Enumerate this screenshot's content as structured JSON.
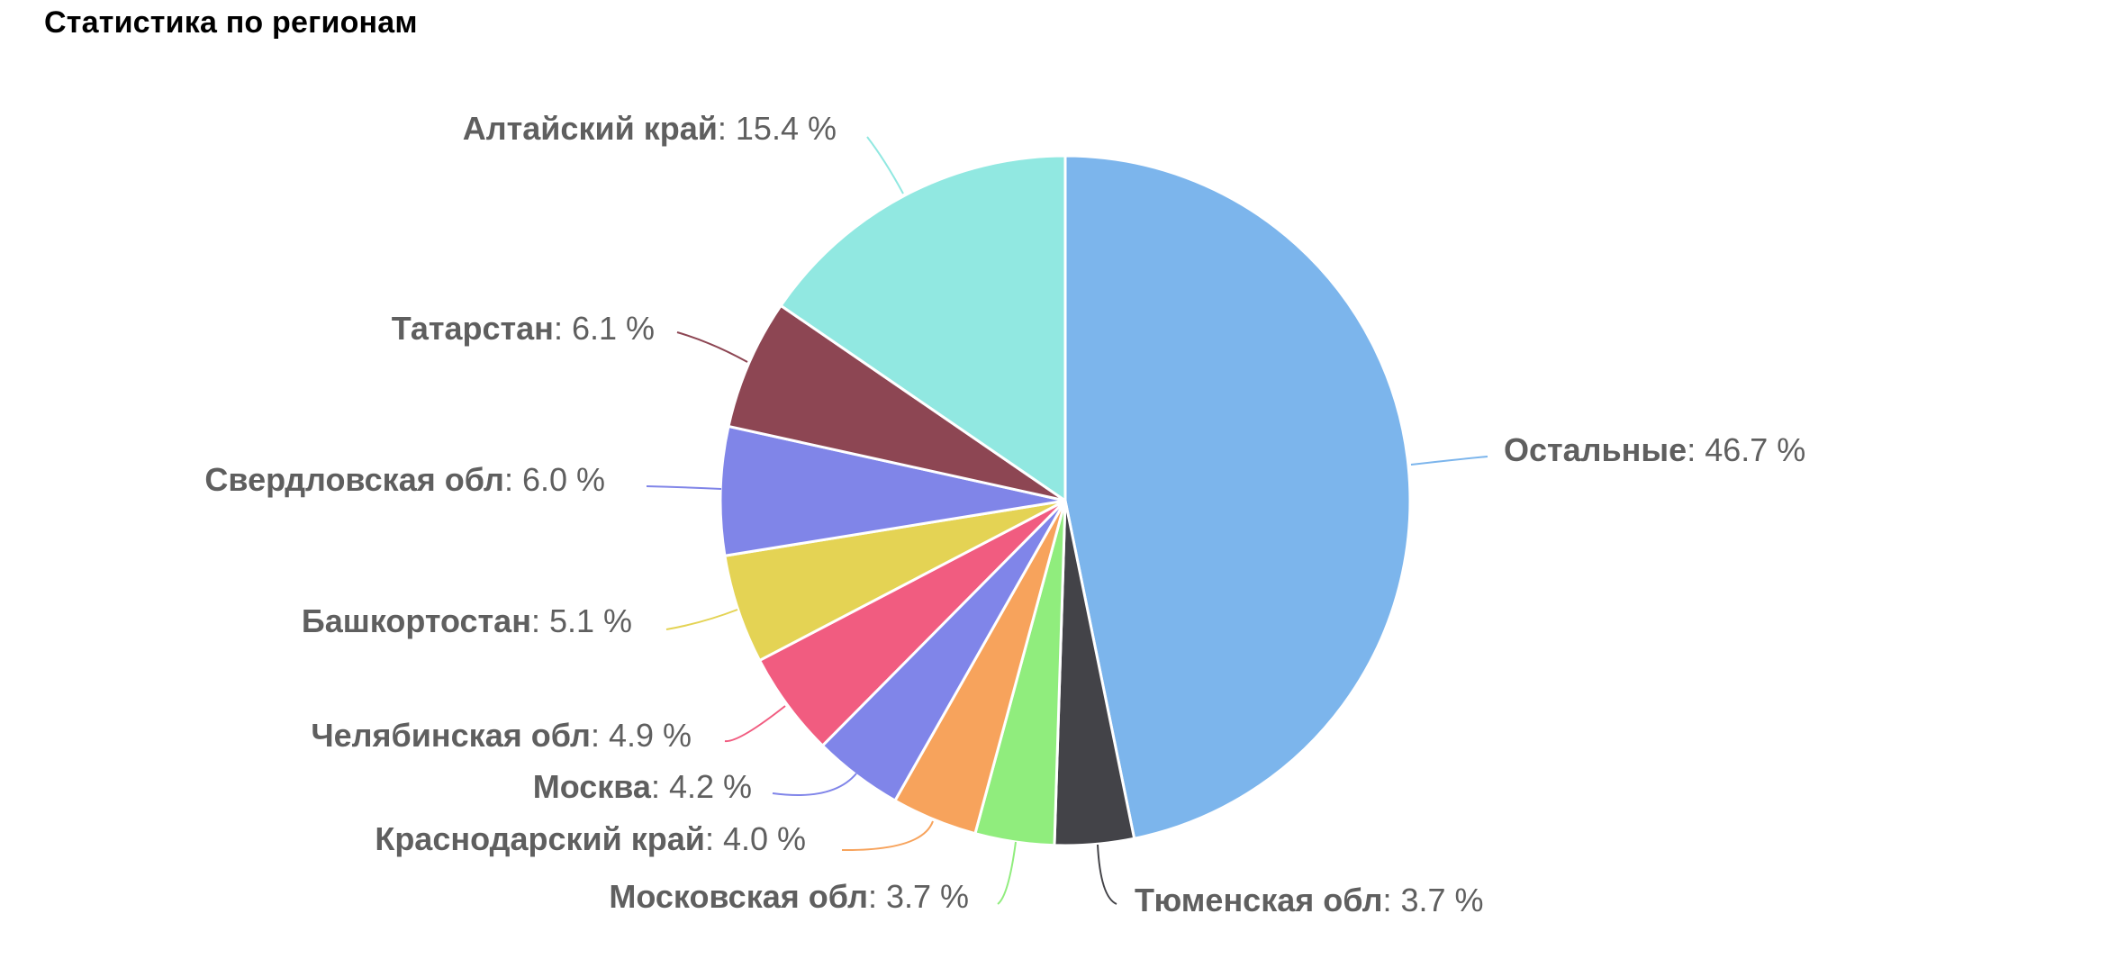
{
  "chart_data": {
    "type": "pie",
    "title": "Статистика по регионам",
    "start_angle_deg": 0,
    "direction": "clockwise",
    "slices": [
      {
        "label": "Остальные",
        "value": 46.7,
        "display": "46.7 %",
        "color": "#7cb5ec"
      },
      {
        "label": "Тюменская обл",
        "value": 3.7,
        "display": "3.7 %",
        "color": "#434348"
      },
      {
        "label": "Московская обл",
        "value": 3.7,
        "display": "3.7 %",
        "color": "#90ed7d"
      },
      {
        "label": "Краснодарский край",
        "value": 4.0,
        "display": "4.0 %",
        "color": "#f7a35c"
      },
      {
        "label": "Москва",
        "value": 4.2,
        "display": "4.2 %",
        "color": "#8085e9"
      },
      {
        "label": "Челябинская обл",
        "value": 4.9,
        "display": "4.9 %",
        "color": "#f15c80"
      },
      {
        "label": "Башкортостан",
        "value": 5.1,
        "display": "5.1 %",
        "color": "#e4d354"
      },
      {
        "label": "Свердловская обл",
        "value": 6.0,
        "display": "6.0 %",
        "color": "#8085e8"
      },
      {
        "label": "Татарстан",
        "value": 6.1,
        "display": "6.1 %",
        "color": "#8d4653"
      },
      {
        "label": "Алтайский край",
        "value": 15.4,
        "display": "15.4 %",
        "color": "#91e8e1"
      }
    ]
  }
}
